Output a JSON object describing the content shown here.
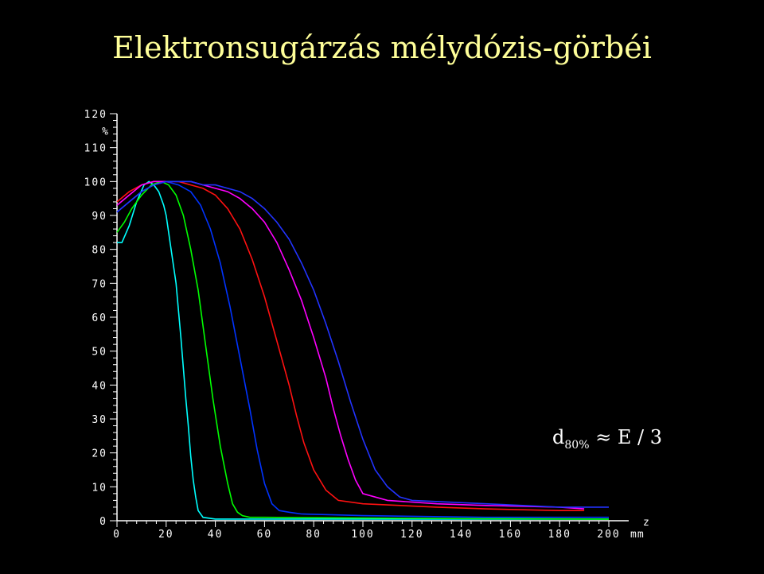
{
  "title": "Elektronsugárzás mélydózis-görbéi",
  "annotation": {
    "main": "d",
    "sub": "80%",
    "rest": " ≈ E / 3"
  },
  "chart_data": {
    "type": "line",
    "xlabel": "z",
    "xunit": "mm",
    "ylabel": "",
    "yunit": "%",
    "xlim": [
      0,
      200
    ],
    "ylim": [
      0,
      120
    ],
    "xticks": [
      0,
      20,
      40,
      60,
      80,
      100,
      120,
      140,
      160,
      180,
      200
    ],
    "yticks": [
      0,
      10,
      20,
      30,
      40,
      50,
      60,
      70,
      80,
      90,
      100,
      110,
      120
    ],
    "grid": false,
    "background": "#000000",
    "series": [
      {
        "color": "#00ffff",
        "x": [
          0,
          2,
          5,
          8,
          11,
          13,
          15,
          17,
          19,
          20,
          21,
          22,
          24,
          26,
          28,
          29,
          30,
          31,
          32,
          33,
          35,
          40,
          60,
          100,
          150,
          200
        ],
        "y": [
          82,
          82,
          87,
          94,
          99,
          100,
          99,
          97,
          93,
          90,
          85,
          80,
          70,
          54,
          36,
          28,
          19,
          12,
          7,
          3,
          1,
          0.5,
          0.5,
          0.5,
          0.5,
          0.5
        ]
      },
      {
        "color": "#00ff00",
        "x": [
          0,
          3,
          6,
          10,
          14,
          18,
          21,
          24,
          27,
          30,
          33,
          36,
          39,
          42,
          45,
          47,
          49,
          51,
          54,
          60,
          100,
          150,
          200
        ],
        "y": [
          85,
          88,
          92,
          96,
          99,
          100,
          99,
          96,
          90,
          80,
          68,
          52,
          36,
          22,
          11,
          5,
          2.5,
          1.5,
          1,
          1,
          0.8,
          0.6,
          0.5
        ]
      },
      {
        "color": "#0033ff",
        "x": [
          0,
          5,
          10,
          15,
          20,
          25,
          30,
          34,
          38,
          42,
          46,
          50,
          54,
          57,
          60,
          63,
          66,
          70,
          75,
          100,
          150,
          200
        ],
        "y": [
          91,
          94,
          97,
          99,
          100,
          99,
          97,
          93,
          86,
          76,
          63,
          48,
          33,
          21,
          11,
          5,
          3,
          2.5,
          2,
          1.5,
          1,
          1
        ]
      },
      {
        "color": "#ff1111",
        "x": [
          0,
          5,
          10,
          15,
          20,
          25,
          30,
          35,
          40,
          45,
          50,
          55,
          60,
          65,
          70,
          73,
          76,
          80,
          85,
          90,
          100,
          130,
          150,
          180,
          190
        ],
        "y": [
          94,
          97,
          99,
          100,
          100,
          100,
          99,
          98,
          96,
          92,
          86,
          77,
          66,
          53,
          40,
          31,
          23,
          15,
          9,
          6,
          5,
          4,
          3.5,
          3,
          3
        ]
      },
      {
        "color": "#ff00ff",
        "x": [
          0,
          5,
          10,
          15,
          20,
          25,
          30,
          35,
          40,
          45,
          50,
          55,
          60,
          65,
          70,
          75,
          80,
          85,
          88,
          91,
          94,
          97,
          100,
          110,
          130,
          150,
          180,
          190
        ],
        "y": [
          93,
          96,
          99,
          100,
          100,
          100,
          100,
          99,
          98,
          97,
          95,
          92,
          88,
          82,
          74,
          65,
          54,
          42,
          33,
          25,
          18,
          12,
          8,
          6,
          5,
          4.5,
          4,
          3.5
        ]
      },
      {
        "color": "#2233ff",
        "x": [
          0,
          5,
          10,
          15,
          20,
          25,
          30,
          35,
          40,
          45,
          50,
          55,
          60,
          65,
          70,
          75,
          80,
          85,
          90,
          95,
          100,
          105,
          110,
          115,
          120,
          150,
          180,
          200
        ],
        "y": [
          91,
          94,
          97,
          99,
          100,
          100,
          100,
          99,
          99,
          98,
          97,
          95,
          92,
          88,
          83,
          76,
          68,
          58,
          47,
          35,
          24,
          15,
          10,
          7,
          6,
          5,
          4,
          4
        ]
      }
    ]
  }
}
